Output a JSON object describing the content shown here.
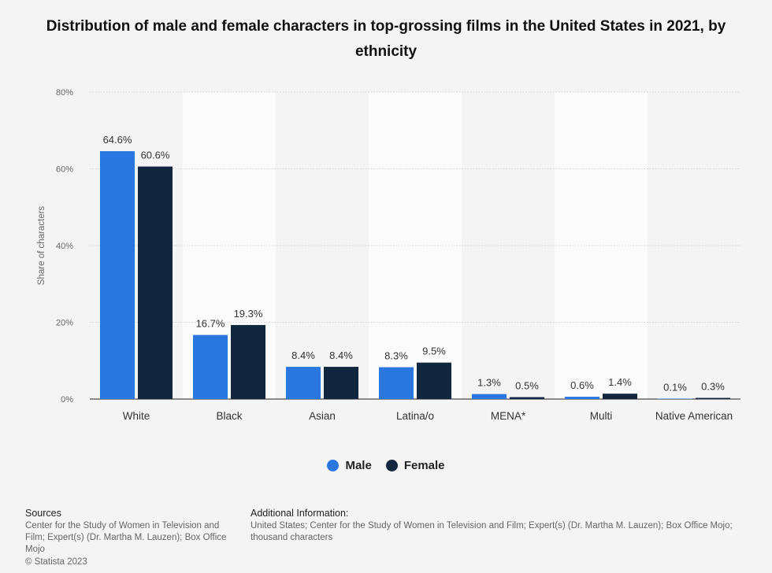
{
  "chart_data": {
    "type": "bar",
    "title": "Distribution of male and female characters in top-grossing films in the United States in 2021, by ethnicity",
    "ylabel": "Share of characters",
    "xlabel": "",
    "ylim": [
      0,
      80
    ],
    "y_ticks": [
      "0%",
      "20%",
      "40%",
      "60%",
      "80%"
    ],
    "y_tick_values": [
      0,
      20,
      40,
      60,
      80
    ],
    "categories": [
      "White",
      "Black",
      "Asian",
      "Latina/o",
      "MENA*",
      "Multi",
      "Native American"
    ],
    "series": [
      {
        "name": "Male",
        "color": "#2a77e0",
        "values": [
          64.6,
          16.7,
          8.4,
          8.3,
          1.3,
          0.6,
          0.1
        ],
        "labels": [
          "64.6%",
          "16.7%",
          "8.4%",
          "8.3%",
          "1.3%",
          "0.6%",
          "0.1%"
        ]
      },
      {
        "name": "Female",
        "color": "#12263f",
        "values": [
          60.6,
          19.3,
          8.4,
          9.5,
          0.5,
          1.4,
          0.3
        ],
        "labels": [
          "60.6%",
          "19.3%",
          "8.4%",
          "9.5%",
          "0.5%",
          "1.4%",
          "0.3%"
        ]
      }
    ],
    "grid": true,
    "legend_position": "bottom"
  },
  "footer": {
    "sources_title": "Sources",
    "sources_text": "Center for the Study of Women in Television and Film; Expert(s) (Dr. Martha M. Lauzen); Box Office Mojo",
    "additional_title": "Additional Information:",
    "additional_text": "United States; Center for the Study of Women in Television and Film; Expert(s) (Dr. Martha M. Lauzen); Box Office Mojo; thousand characters",
    "copyright": "© Statista 2023"
  }
}
